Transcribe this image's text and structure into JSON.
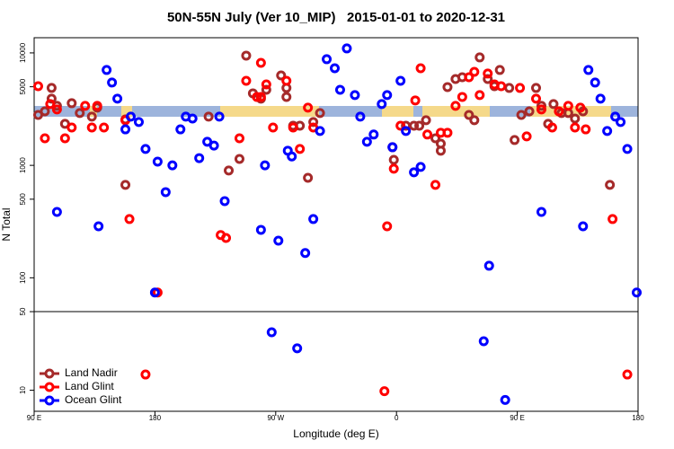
{
  "chart_data": {
    "type": "scatter",
    "title": "50N-55N July (Ver 10_MIP)   2015-01-01 to 2020-12-31",
    "x_label": "Longitude (deg E)",
    "y_label": "N Total",
    "xlim": [
      90,
      540
    ],
    "xticks": [
      {
        "value": 90,
        "label": "90 E"
      },
      {
        "value": 180,
        "label": "180"
      },
      {
        "value": 270,
        "label": "90 W"
      },
      {
        "value": 360,
        "label": "0"
      },
      {
        "value": 450,
        "label": "90 E"
      },
      {
        "value": 540,
        "label": "180"
      }
    ],
    "ylim": [
      6.5,
      13650
    ],
    "log_y": true,
    "panel_split": 50,
    "yticks": [
      10,
      50,
      100,
      500,
      1000,
      5000,
      10000
    ],
    "legend": "bottom-left",
    "series": [
      {
        "name": "Land Nadir",
        "color": "#a52a2a",
        "x": [
          93,
          98,
          103,
          103,
          107,
          113,
          118,
          124,
          133,
          137,
          158,
          158,
          220,
          235,
          243,
          248,
          253,
          259,
          263,
          274,
          278,
          278,
          283,
          288,
          294,
          298,
          303,
          357,
          358,
          367,
          373,
          377,
          382,
          389,
          393,
          393,
          398,
          404,
          409,
          414,
          418,
          422,
          428,
          433,
          437,
          444,
          448,
          453,
          459,
          464,
          468,
          473,
          477,
          483,
          488,
          493,
          499,
          519
        ],
        "values": [
          2810,
          3020,
          4880,
          3920,
          3380,
          2340,
          3570,
          2920,
          2710,
          3260,
          670,
          2560,
          2710,
          900,
          1140,
          9460,
          4370,
          3920,
          4700,
          6310,
          4060,
          4880,
          2250,
          2250,
          775,
          2430,
          2920,
          1450,
          1120,
          2250,
          2250,
          2250,
          2520,
          1740,
          1560,
          1350,
          4970,
          5860,
          6080,
          2810,
          2520,
          9120,
          5860,
          5060,
          7050,
          4880,
          1680,
          2810,
          3020,
          4880,
          3380,
          2340,
          3510,
          2920,
          2920,
          2610,
          3020,
          670
        ]
      },
      {
        "name": "Land Glint",
        "color": "#ff0000",
        "x": [
          93,
          98,
          102,
          107,
          113,
          118,
          128,
          133,
          137,
          142,
          158,
          161,
          173,
          182,
          229,
          233,
          243,
          248,
          256,
          259,
          259,
          263,
          268,
          278,
          283,
          288,
          294,
          298,
          351,
          353,
          358,
          363,
          374,
          378,
          383,
          389,
          393,
          398,
          404,
          409,
          414,
          418,
          422,
          428,
          433,
          438,
          452,
          457,
          464,
          468,
          476,
          481,
          488,
          493,
          497,
          501,
          521,
          532
        ],
        "values": [
          5060,
          1740,
          3510,
          3140,
          1740,
          2170,
          3380,
          2170,
          3380,
          2170,
          2520,
          333,
          13.8,
          74,
          240,
          226,
          1740,
          5650,
          4060,
          4060,
          8160,
          5250,
          2170,
          5650,
          2170,
          1400,
          3260,
          2170,
          9.8,
          287,
          933,
          2250,
          3780,
          7310,
          1880,
          670,
          1950,
          1950,
          3380,
          4060,
          6080,
          6790,
          4220,
          6550,
          5250,
          5060,
          4880,
          1810,
          3920,
          3140,
          2170,
          3020,
          3380,
          2170,
          3260,
          2090,
          333,
          13.8
        ]
      },
      {
        "name": "Ocean Glint",
        "color": "#0000ff",
        "x": [
          107,
          138,
          144,
          148,
          152,
          158,
          162,
          168,
          173,
          180,
          182,
          188,
          193,
          199,
          203,
          208,
          213,
          219,
          224,
          228,
          232,
          259,
          262,
          267,
          272,
          279,
          282,
          286,
          292,
          298,
          303,
          308,
          314,
          318,
          323,
          329,
          333,
          338,
          343,
          349,
          353,
          357,
          363,
          367,
          373,
          378,
          425,
          429,
          441,
          468,
          499,
          503,
          508,
          512,
          517,
          523,
          527,
          532,
          539
        ],
        "values": [
          385,
          287,
          7050,
          5450,
          3920,
          2090,
          2710,
          2430,
          1400,
          74,
          1080,
          578,
          1000,
          2090,
          2710,
          2610,
          1160,
          1620,
          1500,
          2710,
          481,
          267,
          1000,
          32.8,
          214,
          1350,
          1200,
          23.6,
          166,
          333,
          2020,
          8790,
          7310,
          4700,
          10960,
          4220,
          2710,
          1620,
          1880,
          3510,
          4220,
          1450,
          5650,
          2020,
          867,
          968,
          27.3,
          128,
          8.2,
          385,
          287,
          7050,
          5450,
          3920,
          2020,
          2710,
          2430,
          1400,
          74
        ]
      }
    ]
  }
}
